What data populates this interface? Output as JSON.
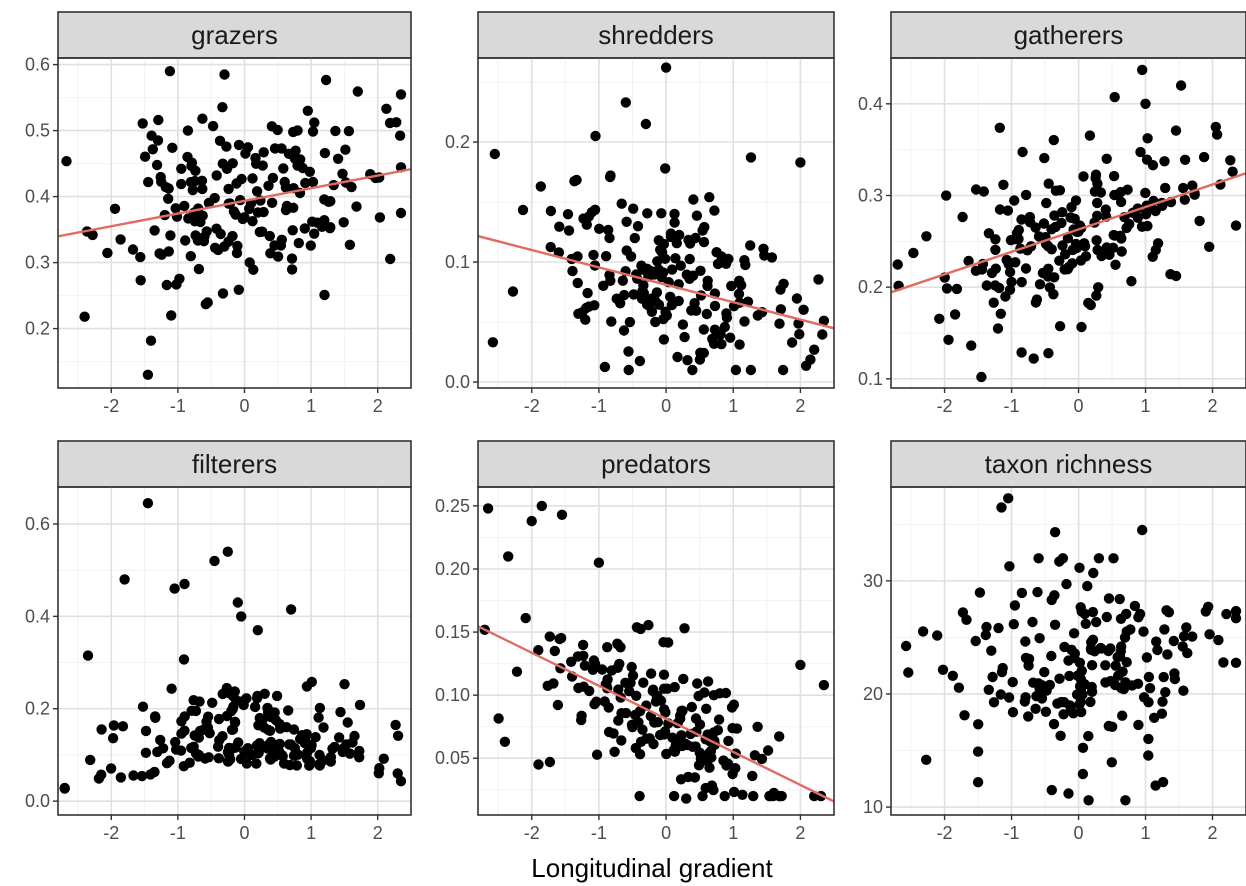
{
  "figure": {
    "xlabel": "Longitudinal gradient"
  },
  "style": {
    "point_color": "#000000",
    "trend_color": "#e06c64",
    "strip_fill": "#d9d9d9",
    "grid_major": "#e0e0e0",
    "grid_minor": "#f2f2f2",
    "panel_border": "#333333"
  },
  "chart_data": [
    {
      "type": "scatter",
      "title": "grazers",
      "xlim": [
        -2.8,
        2.5
      ],
      "ylim": [
        0.11,
        0.61
      ],
      "xticks": [
        -2,
        -1,
        0,
        1,
        2
      ],
      "yticks": [
        0.2,
        0.3,
        0.4,
        0.5,
        0.6
      ],
      "ytick_labels": [
        "0.2",
        "0.3",
        "0.4",
        "0.5",
        "0.6"
      ],
      "trend": {
        "intercept": 0.3935,
        "slope": 0.0192
      },
      "n": 200,
      "model": {
        "mean": 0.3935,
        "slope": 0.0192,
        "sd": 0.065,
        "noise_pow": 1,
        "seed": 11,
        "min": 0.13,
        "max": 0.59
      },
      "points": [
        [
          -1.12,
          0.59
        ],
        [
          -0.3,
          0.585
        ],
        [
          -1.45,
          0.13
        ],
        [
          -1.1,
          0.22
        ],
        [
          -2.4,
          0.218
        ],
        [
          -0.85,
          0.5
        ],
        [
          0.95,
          0.53
        ]
      ]
    },
    {
      "type": "scatter",
      "title": "shredders",
      "xlim": [
        -2.8,
        2.5
      ],
      "ylim": [
        -0.005,
        0.27
      ],
      "xticks": [
        -2,
        -1,
        0,
        1,
        2
      ],
      "yticks": [
        0.0,
        0.1,
        0.2
      ],
      "ytick_labels": [
        "0.0",
        "0.1",
        "0.2"
      ],
      "trend": {
        "intercept": 0.081,
        "slope": -0.0145
      },
      "n": 200,
      "model": {
        "mean": 0.081,
        "slope": -0.0145,
        "sd": 0.038,
        "noise_pow": 1,
        "seed": 23,
        "min": 0.01,
        "max": 0.23
      },
      "points": [
        [
          0.0,
          0.262
        ],
        [
          -0.6,
          0.233
        ],
        [
          -2.55,
          0.19
        ],
        [
          2.0,
          0.183
        ],
        [
          -0.3,
          0.215
        ],
        [
          -1.05,
          0.205
        ]
      ]
    },
    {
      "type": "scatter",
      "title": "gatherers",
      "xlim": [
        -2.8,
        2.5
      ],
      "ylim": [
        0.09,
        0.45
      ],
      "xticks": [
        -2,
        -1,
        0,
        1,
        2
      ],
      "yticks": [
        0.1,
        0.2,
        0.3,
        0.4
      ],
      "ytick_labels": [
        "0.1",
        "0.2",
        "0.3",
        "0.4"
      ],
      "trend": {
        "intercept": 0.263,
        "slope": 0.0245
      },
      "n": 200,
      "model": {
        "mean": 0.263,
        "slope": 0.0245,
        "sd": 0.045,
        "noise_pow": 1,
        "seed": 37,
        "min": 0.11,
        "max": 0.42
      },
      "points": [
        [
          0.95,
          0.437
        ],
        [
          1.0,
          0.4
        ],
        [
          -1.45,
          0.102
        ],
        [
          -0.45,
          0.128
        ],
        [
          1.95,
          0.244
        ],
        [
          2.3,
          0.326
        ]
      ]
    },
    {
      "type": "scatter",
      "title": "filterers",
      "xlim": [
        -2.8,
        2.5
      ],
      "ylim": [
        -0.03,
        0.68
      ],
      "xticks": [
        -2,
        -1,
        0,
        1,
        2
      ],
      "yticks": [
        0.0,
        0.2,
        0.4,
        0.6
      ],
      "ytick_labels": [
        "0.0",
        "0.2",
        "0.4",
        "0.6"
      ],
      "n": 200,
      "model": {
        "mean": 0.08,
        "slope": 0.0,
        "sd": 0.075,
        "noise_pow": 1,
        "seed": 53,
        "abs": true,
        "curve": -0.012,
        "min": 0.0,
        "max": 0.32
      },
      "points": [
        [
          -1.45,
          0.645
        ],
        [
          -0.25,
          0.54
        ],
        [
          -0.45,
          0.52
        ],
        [
          -0.9,
          0.47
        ],
        [
          -1.05,
          0.46
        ],
        [
          -1.8,
          0.48
        ],
        [
          0.7,
          0.415
        ],
        [
          -0.1,
          0.43
        ],
        [
          0.2,
          0.37
        ],
        [
          -0.05,
          0.4
        ],
        [
          2.3,
          0.06
        ],
        [
          -2.35,
          0.315
        ]
      ]
    },
    {
      "type": "scatter",
      "title": "predators",
      "xlim": [
        -2.8,
        2.5
      ],
      "ylim": [
        0.005,
        0.265
      ],
      "xticks": [
        -2,
        -1,
        0,
        1,
        2
      ],
      "yticks": [
        0.05,
        0.1,
        0.15,
        0.2,
        0.25
      ],
      "ytick_labels": [
        "0.05",
        "0.10",
        "0.15",
        "0.20",
        "0.25"
      ],
      "trend": {
        "intercept": 0.0812,
        "slope": -0.0262
      },
      "n": 200,
      "model": {
        "mean": 0.0812,
        "slope": -0.0262,
        "sd": 0.027,
        "noise_pow": 1,
        "seed": 71,
        "min": 0.02,
        "max": 0.2
      },
      "points": [
        [
          -2.65,
          0.248
        ],
        [
          -1.85,
          0.25
        ],
        [
          -2.0,
          0.238
        ],
        [
          -1.55,
          0.243
        ],
        [
          -1.0,
          0.205
        ],
        [
          -2.35,
          0.21
        ],
        [
          0.3,
          0.018
        ],
        [
          2.35,
          0.108
        ],
        [
          2.0,
          0.124
        ],
        [
          -2.4,
          0.063
        ],
        [
          -1.9,
          0.045
        ]
      ]
    },
    {
      "type": "scatter",
      "title": "taxon richness",
      "xlim": [
        -2.8,
        2.5
      ],
      "ylim": [
        9.3,
        38.3
      ],
      "xticks": [
        -2,
        -1,
        0,
        1,
        2
      ],
      "yticks": [
        10,
        20,
        30
      ],
      "ytick_labels": [
        "10",
        "20",
        "30"
      ],
      "n": 200,
      "model": {
        "mean": 22.8,
        "slope": -0.45,
        "sd": 4.3,
        "noise_pow": 1,
        "seed": 97,
        "min": 10.5,
        "max": 32
      },
      "points": [
        [
          -1.05,
          37.3
        ],
        [
          -1.15,
          36.5
        ],
        [
          -0.35,
          34.3
        ],
        [
          0.95,
          34.5
        ],
        [
          -1.5,
          12.2
        ],
        [
          -0.4,
          11.5
        ],
        [
          0.15,
          10.6
        ],
        [
          0.7,
          10.6
        ],
        [
          1.15,
          11.9
        ],
        [
          -0.15,
          11.2
        ],
        [
          2.35,
          26.7
        ],
        [
          1.9,
          27.3
        ]
      ]
    }
  ]
}
